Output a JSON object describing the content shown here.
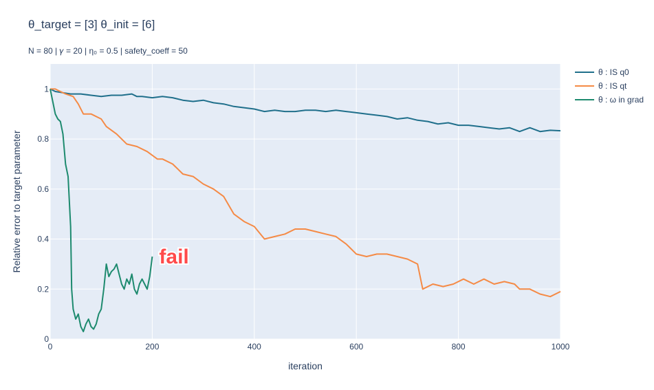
{
  "chart_data": {
    "type": "line",
    "title": "θ_target = [3]      θ_init = [6]",
    "subtitle": "N = 80  |  𝛾 = 20  | η₀ = 0.5  | safety_coeff = 50",
    "xlabel": "iteration",
    "ylabel": "Relative error to target parameter",
    "xlim": [
      0,
      1000
    ],
    "ylim": [
      0,
      1.1
    ],
    "xticks": [
      "0",
      "200",
      "400",
      "600",
      "800",
      "1000"
    ],
    "yticks": [
      "0",
      "0.2",
      "0.4",
      "0.6",
      "0.8",
      "1"
    ],
    "grid": true,
    "legend_position": "top-right",
    "annotation": "fail",
    "colors": {
      "plot_bg": "#e5ecf6",
      "grid": "#ffffff"
    },
    "series": [
      {
        "name": "θ : IS q0",
        "color": "#1f6f8b",
        "x": [
          0,
          10,
          25,
          40,
          60,
          80,
          100,
          120,
          140,
          160,
          170,
          180,
          200,
          220,
          240,
          260,
          280,
          300,
          320,
          340,
          360,
          380,
          400,
          420,
          440,
          460,
          480,
          500,
          520,
          540,
          560,
          580,
          600,
          620,
          640,
          660,
          680,
          700,
          720,
          740,
          760,
          780,
          800,
          820,
          840,
          860,
          880,
          900,
          920,
          940,
          960,
          980,
          1000
        ],
        "y": [
          1.0,
          0.99,
          0.985,
          0.98,
          0.98,
          0.975,
          0.97,
          0.975,
          0.975,
          0.98,
          0.97,
          0.97,
          0.965,
          0.97,
          0.965,
          0.955,
          0.95,
          0.955,
          0.945,
          0.94,
          0.93,
          0.925,
          0.92,
          0.91,
          0.915,
          0.91,
          0.91,
          0.915,
          0.915,
          0.91,
          0.915,
          0.91,
          0.905,
          0.9,
          0.895,
          0.89,
          0.88,
          0.885,
          0.875,
          0.87,
          0.86,
          0.865,
          0.855,
          0.855,
          0.85,
          0.845,
          0.84,
          0.845,
          0.83,
          0.845,
          0.83,
          0.835,
          0.833
        ]
      },
      {
        "name": "θ : IS qt",
        "color": "#f58a45",
        "x": [
          0,
          10,
          20,
          30,
          45,
          55,
          65,
          80,
          100,
          110,
          130,
          150,
          170,
          190,
          210,
          220,
          240,
          250,
          260,
          280,
          300,
          320,
          340,
          360,
          380,
          400,
          420,
          440,
          460,
          480,
          500,
          520,
          540,
          560,
          580,
          600,
          620,
          640,
          660,
          680,
          700,
          720,
          730,
          750,
          770,
          790,
          810,
          830,
          850,
          870,
          890,
          910,
          920,
          940,
          960,
          980,
          1000
        ],
        "y": [
          1.0,
          1.0,
          0.99,
          0.98,
          0.97,
          0.94,
          0.9,
          0.9,
          0.88,
          0.85,
          0.82,
          0.78,
          0.77,
          0.75,
          0.72,
          0.72,
          0.7,
          0.68,
          0.66,
          0.65,
          0.62,
          0.6,
          0.57,
          0.5,
          0.47,
          0.45,
          0.4,
          0.41,
          0.42,
          0.44,
          0.44,
          0.43,
          0.42,
          0.41,
          0.38,
          0.34,
          0.33,
          0.34,
          0.34,
          0.33,
          0.32,
          0.3,
          0.2,
          0.22,
          0.21,
          0.22,
          0.24,
          0.22,
          0.24,
          0.22,
          0.23,
          0.22,
          0.2,
          0.2,
          0.18,
          0.17,
          0.19
        ]
      },
      {
        "name": "θ : ω in grad",
        "color": "#1d8a6e",
        "x": [
          0,
          5,
          10,
          15,
          20,
          25,
          30,
          35,
          40,
          42,
          45,
          50,
          55,
          60,
          65,
          70,
          75,
          80,
          85,
          90,
          95,
          100,
          105,
          110,
          115,
          120,
          125,
          130,
          135,
          140,
          145,
          150,
          155,
          160,
          165,
          170,
          175,
          180,
          185,
          190,
          195,
          200
        ],
        "y": [
          1.0,
          0.95,
          0.9,
          0.88,
          0.87,
          0.82,
          0.7,
          0.65,
          0.45,
          0.2,
          0.12,
          0.08,
          0.1,
          0.05,
          0.03,
          0.06,
          0.08,
          0.05,
          0.04,
          0.06,
          0.1,
          0.12,
          0.2,
          0.3,
          0.25,
          0.27,
          0.28,
          0.3,
          0.26,
          0.22,
          0.2,
          0.24,
          0.22,
          0.26,
          0.2,
          0.18,
          0.22,
          0.24,
          0.22,
          0.2,
          0.25,
          0.33
        ]
      }
    ]
  }
}
